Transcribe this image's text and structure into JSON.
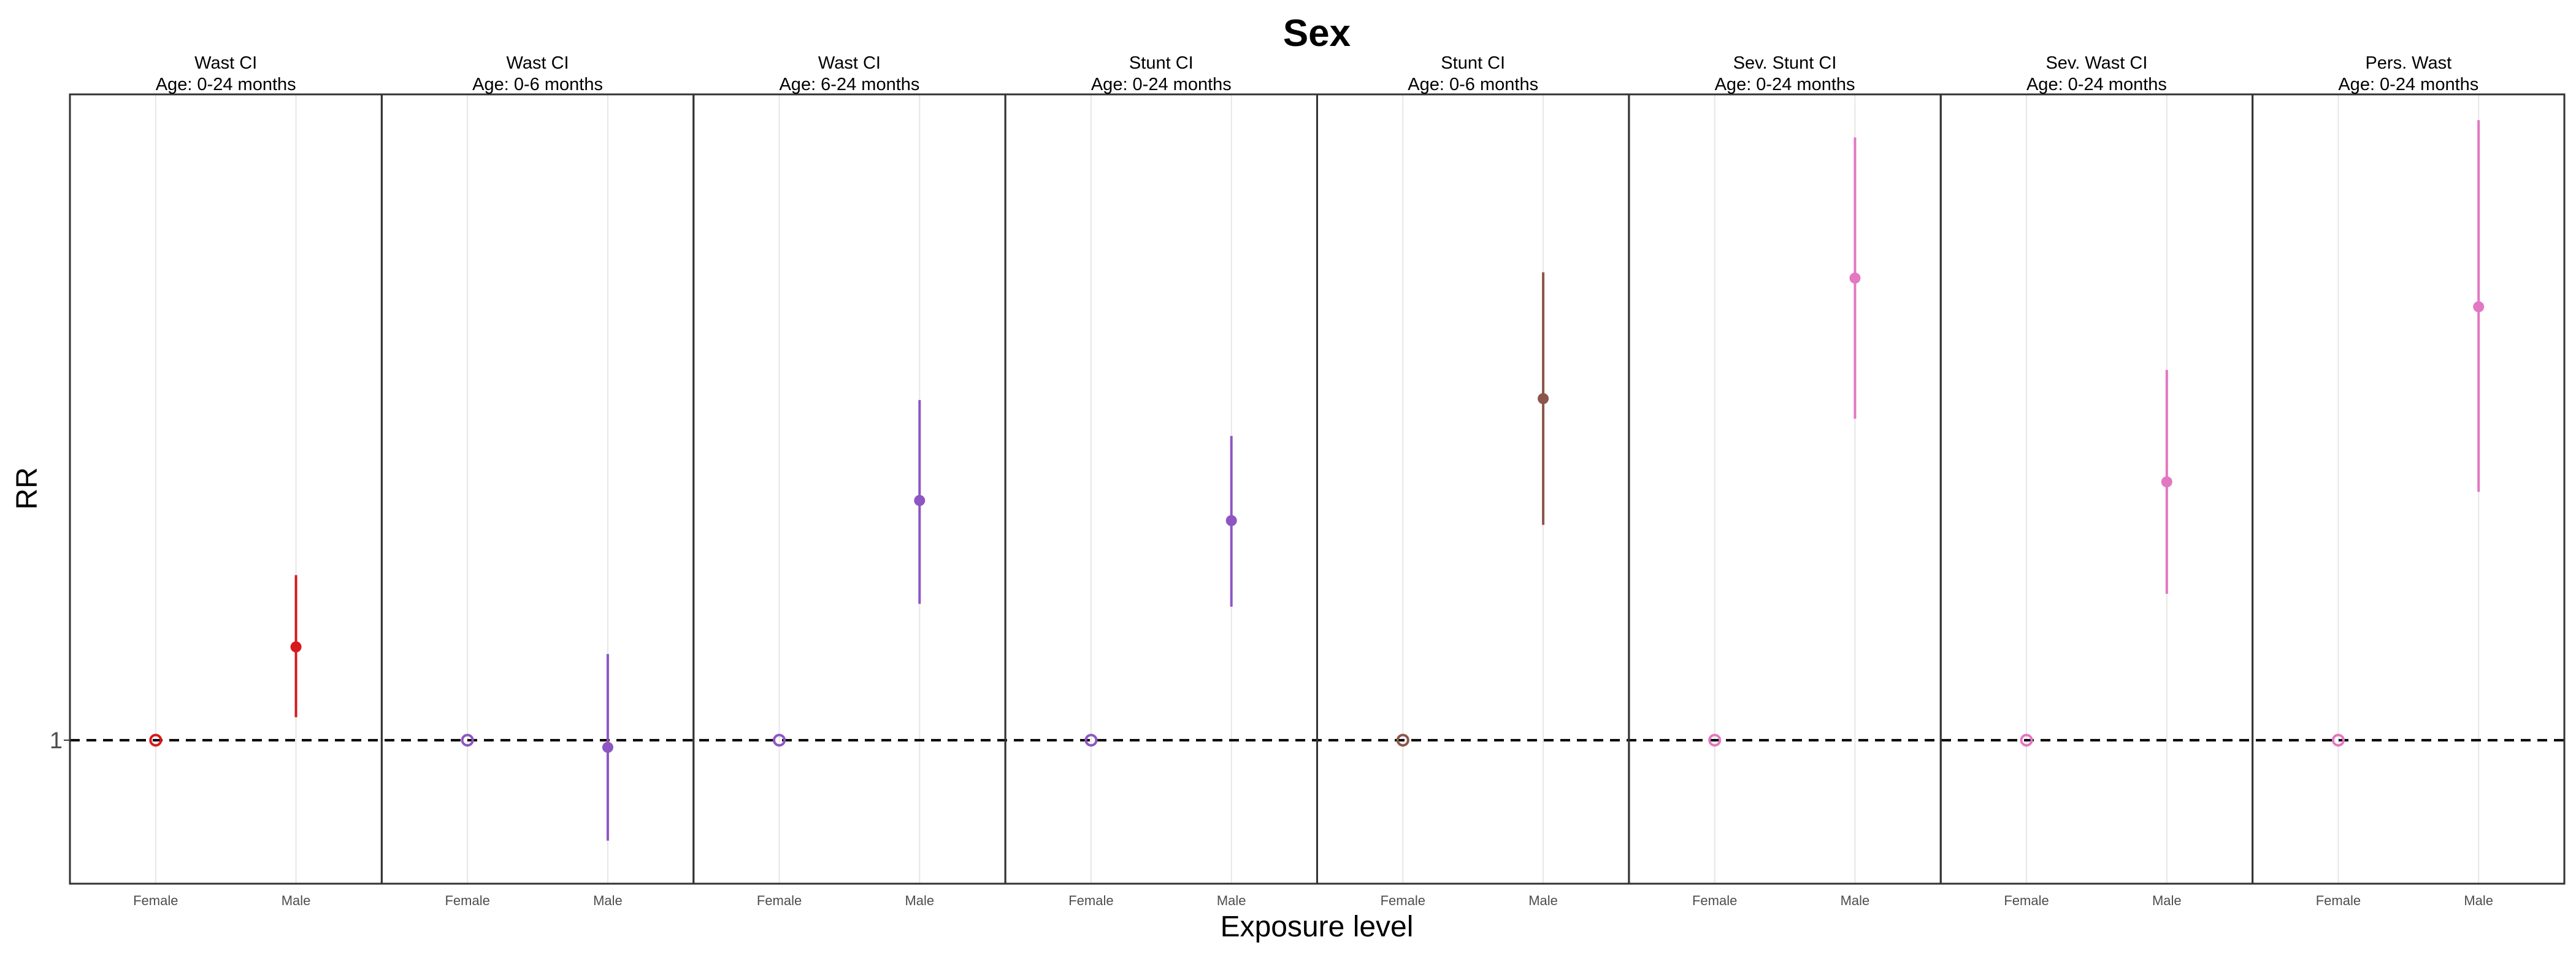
{
  "chart_data": {
    "type": "scatter",
    "title": "Sex",
    "xlabel": "Exposure level",
    "ylabel": "RR",
    "categories": [
      "Female",
      "Male"
    ],
    "y_ticks": [
      {
        "value": 1,
        "label": "1"
      }
    ],
    "ylim": [
      0.9,
      1.45
    ],
    "reference_line": {
      "y": 1,
      "style": "dashed"
    },
    "grid": "vertical minor lines only",
    "legend": "none",
    "panels": [
      {
        "outcome": "Wast CI",
        "age": "Age: 0-24 months",
        "color": "#d7191c",
        "points": [
          {
            "x": "Female",
            "y": 1.0,
            "reference": true
          },
          {
            "x": "Male",
            "y": 1.065,
            "lower": 1.016,
            "upper": 1.115
          }
        ]
      },
      {
        "outcome": "Wast CI",
        "age": "Age: 0-6 months",
        "color": "#8e56c2",
        "points": [
          {
            "x": "Female",
            "y": 1.0,
            "reference": true
          },
          {
            "x": "Male",
            "y": 0.995,
            "lower": 0.93,
            "upper": 1.06
          }
        ]
      },
      {
        "outcome": "Wast CI",
        "age": "Age: 6-24 months",
        "color": "#8e56c2",
        "points": [
          {
            "x": "Female",
            "y": 1.0,
            "reference": true
          },
          {
            "x": "Male",
            "y": 1.167,
            "lower": 1.095,
            "upper": 1.237
          }
        ]
      },
      {
        "outcome": "Stunt CI",
        "age": "Age: 0-24 months",
        "color": "#8e56c2",
        "points": [
          {
            "x": "Female",
            "y": 1.0,
            "reference": true
          },
          {
            "x": "Male",
            "y": 1.153,
            "lower": 1.093,
            "upper": 1.212
          }
        ]
      },
      {
        "outcome": "Stunt CI",
        "age": "Age: 0-6 months",
        "color": "#8c564b",
        "points": [
          {
            "x": "Female",
            "y": 1.0,
            "reference": true
          },
          {
            "x": "Male",
            "y": 1.238,
            "lower": 1.15,
            "upper": 1.326
          }
        ]
      },
      {
        "outcome": "Sev. Stunt CI",
        "age": "Age: 0-24 months",
        "color": "#e377c2",
        "points": [
          {
            "x": "Female",
            "y": 1.0,
            "reference": true
          },
          {
            "x": "Male",
            "y": 1.322,
            "lower": 1.224,
            "upper": 1.42
          }
        ]
      },
      {
        "outcome": "Sev. Wast CI",
        "age": "Age: 0-24 months",
        "color": "#e377c2",
        "points": [
          {
            "x": "Female",
            "y": 1.0,
            "reference": true
          },
          {
            "x": "Male",
            "y": 1.18,
            "lower": 1.102,
            "upper": 1.258
          }
        ]
      },
      {
        "outcome": "Pers. Wast",
        "age": "Age: 0-24 months",
        "color": "#e377c2",
        "points": [
          {
            "x": "Female",
            "y": 1.0,
            "reference": true
          },
          {
            "x": "Male",
            "y": 1.302,
            "lower": 1.173,
            "upper": 1.432
          }
        ]
      }
    ]
  }
}
